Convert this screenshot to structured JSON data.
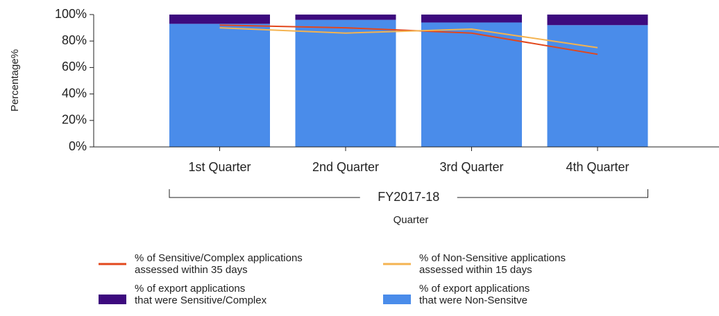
{
  "chart_data": {
    "type": "bar",
    "y_label": "Percentage%",
    "x_label": "Quarter",
    "group_label": "FY2017-18",
    "categories": [
      "1st Quarter",
      "2nd Quarter",
      "3rd Quarter",
      "4th Quarter"
    ],
    "series": [
      {
        "name": "% of Sensitive/Complex applications\nassessed within 35 days",
        "type": "line",
        "color": "#e2471c",
        "values": [
          92,
          90,
          86,
          70
        ]
      },
      {
        "name": "% of Non-Sensitive applications\nassessed within 15 days",
        "type": "line",
        "color": "#f4b350",
        "values": [
          90,
          86,
          89,
          75
        ]
      },
      {
        "name": "% of export applications\nthat were Sensitive/Complex",
        "type": "bar",
        "color": "#3d0a7e",
        "values": [
          7,
          4,
          6,
          8
        ]
      },
      {
        "name": "% of export applications\nthat were Non-Sensitve",
        "type": "bar",
        "color": "#4a8cea",
        "values": [
          93,
          96,
          94,
          92
        ]
      }
    ],
    "ylim": [
      0,
      100
    ],
    "yticks": [
      {
        "value": 0,
        "label": "0%"
      },
      {
        "value": 20,
        "label": "20%"
      },
      {
        "value": 40,
        "label": "40%"
      },
      {
        "value": 60,
        "label": "60%"
      },
      {
        "value": 80,
        "label": "80%"
      },
      {
        "value": 100,
        "label": "100%"
      }
    ],
    "grid": false
  }
}
